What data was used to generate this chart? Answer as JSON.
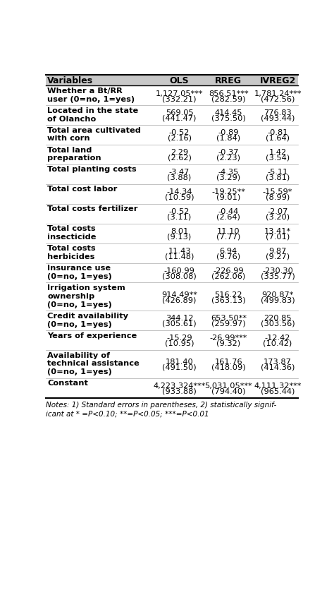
{
  "headers": [
    "Variables",
    "OLS",
    "RREG",
    "IVREG2"
  ],
  "rows": [
    {
      "var": [
        "Whether a Bt/RR",
        "user (0=no, 1=yes)"
      ],
      "ols": "1,127.05***",
      "ols_se": "(332.21)",
      "rreg": "856.51***",
      "rreg_se": "(282.59)",
      "ivreg": "1,781.24***",
      "ivreg_se": "(472.56)",
      "nlines": 2
    },
    {
      "var": [
        "Located in the state",
        "of Olancho"
      ],
      "ols": "569.05",
      "ols_se": "(441.47)",
      "rreg": "414.45",
      "rreg_se": "(375.50)",
      "ivreg": "776.83",
      "ivreg_se": "(493.44)",
      "nlines": 2
    },
    {
      "var": [
        "Total area cultivated",
        "with corn"
      ],
      "ols": "-0.52",
      "ols_se": "(2.16)",
      "rreg": "-0.89",
      "rreg_se": "(1.84)",
      "ivreg": "-0.81",
      "ivreg_se": "(1.64)",
      "nlines": 2
    },
    {
      "var": [
        "Total land",
        "preparation"
      ],
      "ols": "2.29",
      "ols_se": "(2.62)",
      "rreg": "-0.37",
      "rreg_se": "(2.23)",
      "ivreg": "1.42",
      "ivreg_se": "(3.54)",
      "nlines": 2
    },
    {
      "var": [
        "Total planting costs"
      ],
      "ols": "-3.47",
      "ols_se": "(3.88)",
      "rreg": "-4.35",
      "rreg_se": "(3.29)",
      "ivreg": "-5.11",
      "ivreg_se": "(3.81)",
      "nlines": 1
    },
    {
      "var": [
        "Total cost labor"
      ],
      "ols": "-14.34",
      "ols_se": "(10.59)",
      "rreg": "-19.25**",
      "rreg_se": "(9.01)",
      "ivreg": "-15.59*",
      "ivreg_se": "(8.99)",
      "nlines": 1
    },
    {
      "var": [
        "Total costs fertilizer"
      ],
      "ols": "-0.52",
      "ols_se": "(3.11)",
      "rreg": "-0.44",
      "rreg_se": "(2.64)",
      "ivreg": "-2.07",
      "ivreg_se": "(3.20)",
      "nlines": 1
    },
    {
      "var": [
        "Total costs",
        "insecticide"
      ],
      "ols": "8.01",
      "ols_se": "(9.13)",
      "rreg": "11.10",
      "rreg_se": "(7.77)",
      "ivreg": "13.41*",
      "ivreg_se": "(7.01)",
      "nlines": 2
    },
    {
      "var": [
        "Total costs",
        "herbicides"
      ],
      "ols": "11.43",
      "ols_se": "(11.48)",
      "rreg": "6.94",
      "rreg_se": "(9.76)",
      "ivreg": "9.87",
      "ivreg_se": "(9.27)",
      "nlines": 2
    },
    {
      "var": [
        "Insurance use",
        "(0=no, 1=yes)"
      ],
      "ols": "-160.99",
      "ols_se": "(308.08)",
      "rreg": "-226.99",
      "rreg_se": "(262.06)",
      "ivreg": "-230.30",
      "ivreg_se": "(335.77)",
      "nlines": 2
    },
    {
      "var": [
        "Irrigation system",
        "ownership",
        "(0=no, 1=yes)"
      ],
      "ols": "914.49**",
      "ols_se": "(426.89)",
      "rreg": "516.22",
      "rreg_se": "(363.13)",
      "ivreg": "920.87*",
      "ivreg_se": "(499.83)",
      "nlines": 3
    },
    {
      "var": [
        "Credit availability",
        "(0=no, 1=yes)"
      ],
      "ols": "344.12",
      "ols_se": "(305.61)",
      "rreg": "653.50**",
      "rreg_se": "(259.97)",
      "ivreg": "220.85",
      "ivreg_se": "(303.56)",
      "nlines": 2
    },
    {
      "var": [
        "Years of experience"
      ],
      "ols": "-15.29",
      "ols_se": "(10.95)",
      "rreg": "-26.99***",
      "rreg_se": "(9.32)",
      "ivreg": "-12.42",
      "ivreg_se": "(10.42)",
      "nlines": 1
    },
    {
      "var": [
        "Availability of",
        "technical assistance",
        "(0=no, 1=yes)"
      ],
      "ols": "181.40",
      "ols_se": "(491.50)",
      "rreg": "161.76",
      "rreg_se": "(418.09)",
      "ivreg": "173.87",
      "ivreg_se": "(414.36)",
      "nlines": 3
    },
    {
      "var": [
        "Constant"
      ],
      "ols": "4,223.324***",
      "ols_se": "(933.88)",
      "rreg": "5,031.05***",
      "rreg_se": "(794.40)",
      "ivreg": "4,111.32***",
      "ivreg_se": "(965.44)",
      "nlines": 1
    }
  ],
  "notes_line1": "Notes: 1) Standard errors in parentheses, 2) statistically signif-",
  "notes_line2": "icant at * =P<0.10; **=P<0.05; ***=P<0.01",
  "bg_color": "#ffffff",
  "header_bg": "#c8c8c8",
  "font_size": 8.2,
  "header_font_size": 9.0
}
